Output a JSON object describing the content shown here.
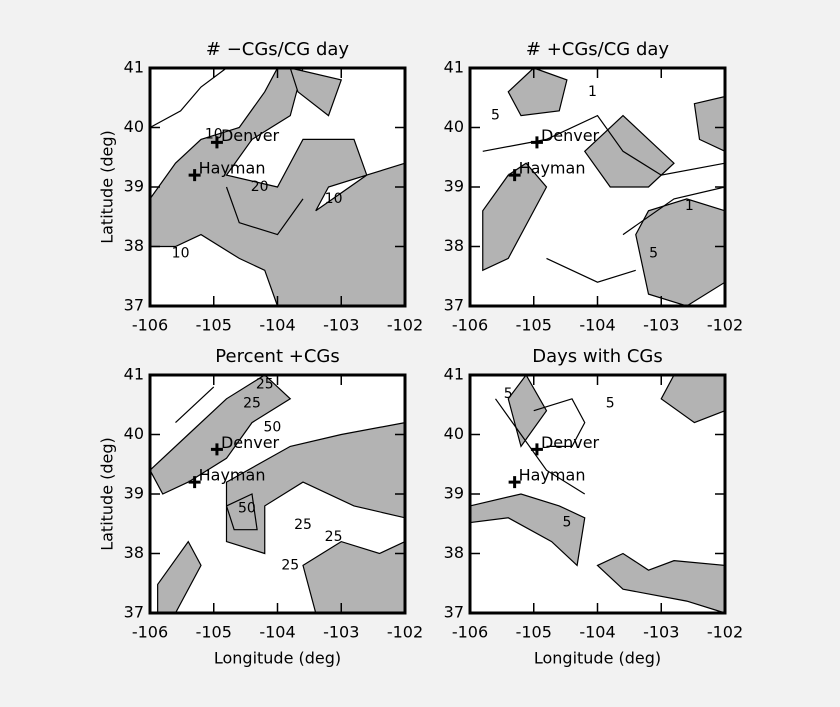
{
  "chart_data": [
    {
      "type": "contour",
      "title": "# −CGs/CG day",
      "ylabel": "Latitude (deg)",
      "xlim": [
        -106,
        -102
      ],
      "ylim": [
        37,
        41
      ],
      "xticks": [
        -106,
        -105,
        -104,
        -103,
        -102
      ],
      "yticks": [
        37,
        38,
        39,
        40,
        41
      ],
      "points": [
        {
          "label": "Denver",
          "x": -104.95,
          "y": 39.75
        },
        {
          "label": "Hayman",
          "x": -105.3,
          "y": 39.2
        }
      ],
      "contour_labels": [
        10,
        20,
        10,
        10
      ]
    },
    {
      "type": "contour",
      "title": "# +CGs/CG day",
      "xlim": [
        -106,
        -102
      ],
      "ylim": [
        37,
        41
      ],
      "xticks": [
        -106,
        -105,
        -104,
        -103,
        -102
      ],
      "yticks": [
        37,
        38,
        39,
        40,
        41
      ],
      "points": [
        {
          "label": "Denver",
          "x": -104.95,
          "y": 39.75
        },
        {
          "label": "Hayman",
          "x": -105.3,
          "y": 39.2
        }
      ],
      "contour_labels": [
        5,
        1,
        5,
        1
      ]
    },
    {
      "type": "contour",
      "title": "Percent +CGs",
      "ylabel": "Latitude (deg)",
      "xlabel": "Longitude (deg)",
      "xlim": [
        -106,
        -102
      ],
      "ylim": [
        37,
        41
      ],
      "xticks": [
        -106,
        -105,
        -104,
        -103,
        -102
      ],
      "yticks": [
        37,
        38,
        39,
        40,
        41
      ],
      "points": [
        {
          "label": "Denver",
          "x": -104.95,
          "y": 39.75
        },
        {
          "label": "Hayman",
          "x": -105.3,
          "y": 39.2
        }
      ],
      "contour_labels": [
        25,
        25,
        50,
        25,
        25,
        25,
        50
      ]
    },
    {
      "type": "contour",
      "title": "Days with CGs",
      "xlabel": "Longitude (deg)",
      "xlim": [
        -106,
        -102
      ],
      "ylim": [
        37,
        41
      ],
      "xticks": [
        -106,
        -105,
        -104,
        -103,
        -102
      ],
      "yticks": [
        37,
        38,
        39,
        40,
        41
      ],
      "points": [
        {
          "label": "Denver",
          "x": -104.95,
          "y": 39.75
        },
        {
          "label": "Hayman",
          "x": -105.3,
          "y": 39.2
        }
      ],
      "contour_labels": [
        5,
        5,
        5
      ]
    }
  ]
}
